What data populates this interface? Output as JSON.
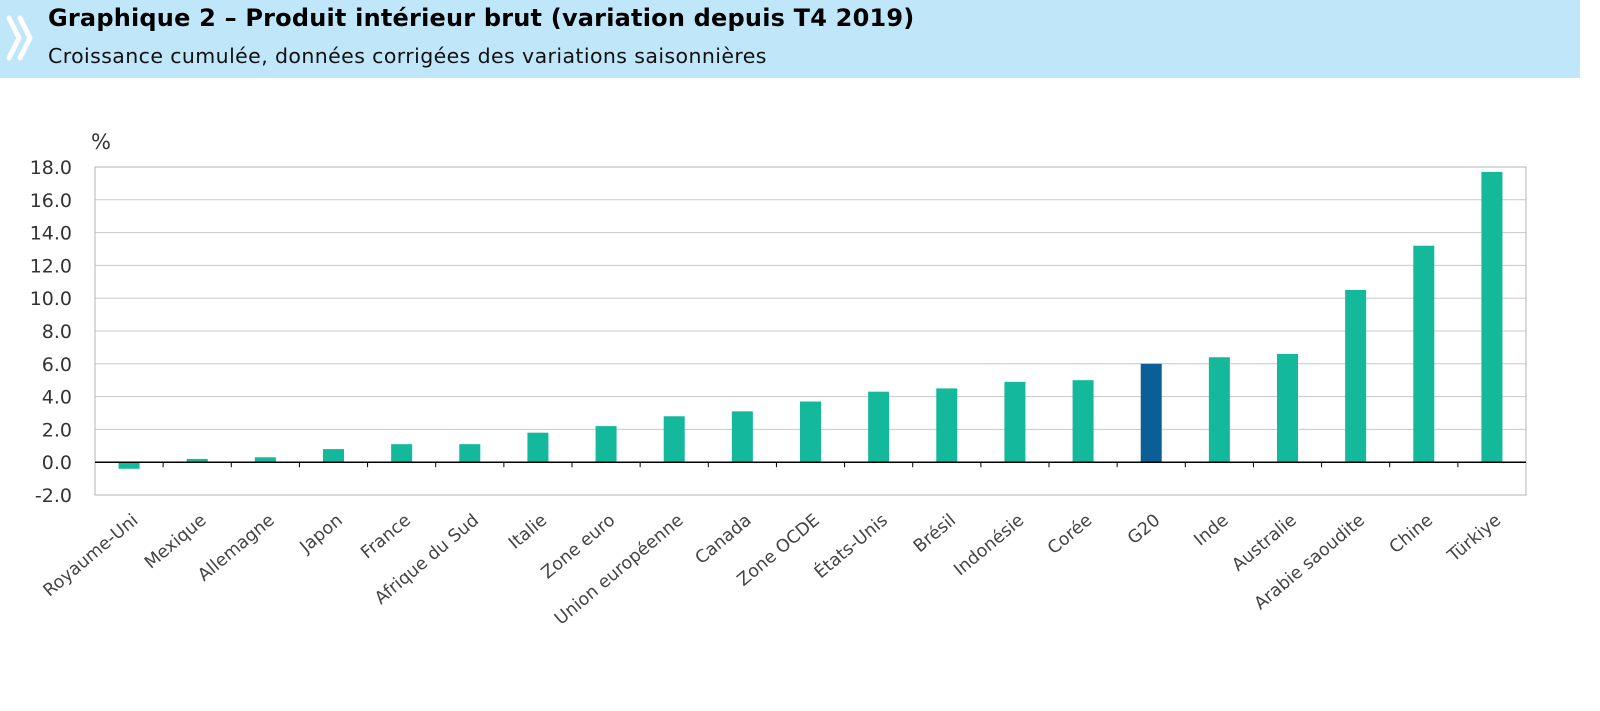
{
  "header": {
    "title": "Graphique 2 – Produit intérieur brut (variation depuis T4 2019)",
    "subtitle": "Croissance cumulée, données corrigées des variations saisonnières",
    "icon": "double-chevron-right-icon"
  },
  "colors": {
    "header_bg": "#bfe6f9",
    "bar": "#14b89a",
    "bar_highlight": "#0b5f96",
    "chevron": "#ffffff"
  },
  "chart_data": {
    "type": "bar",
    "title": "Graphique 2 – Produit intérieur brut (variation depuis T4 2019)",
    "subtitle": "Croissance cumulée, données corrigées des variations saisonnières",
    "unit_label": "%",
    "categories": [
      "Royaume-Uni",
      "Mexique",
      "Allemagne",
      "Japon",
      "France",
      "Afrique du Sud",
      "Italie",
      "Zone euro",
      "Union européenne",
      "Canada",
      "Zone OCDE",
      "États-Unis",
      "Brésil",
      "Indonésie",
      "Corée",
      "G20",
      "Inde",
      "Australie",
      "Arabie saoudite",
      "Chine",
      "Türkiye"
    ],
    "values": [
      -0.4,
      0.2,
      0.3,
      0.8,
      1.1,
      1.1,
      1.8,
      2.2,
      2.8,
      3.1,
      3.7,
      4.3,
      4.5,
      4.9,
      5.0,
      6.0,
      6.4,
      6.6,
      10.5,
      13.2,
      17.7
    ],
    "highlight": "G20",
    "ylim": [
      -2.0,
      18.0
    ],
    "yticks": [
      "-2.0",
      "0.0",
      "2.0",
      "4.0",
      "6.0",
      "8.0",
      "10.0",
      "12.0",
      "14.0",
      "16.0",
      "18.0"
    ],
    "grid": true,
    "legend": "none"
  }
}
